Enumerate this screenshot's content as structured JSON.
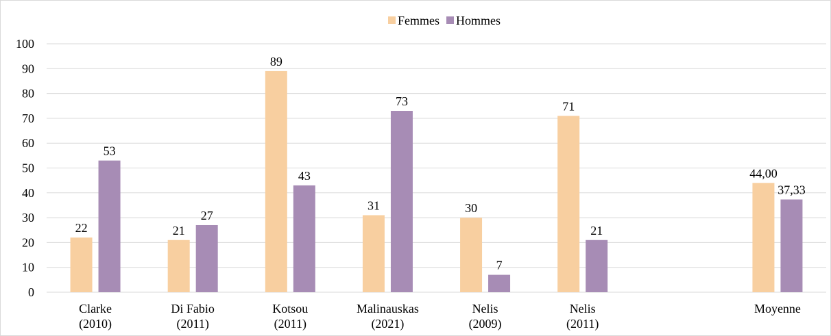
{
  "chart_data": {
    "type": "bar",
    "categories": [
      "Clarke\n(2010)",
      "Di Fabio\n(2011)",
      "Kotsou\n(2011)",
      "Malinauskas\n(2021)",
      "Nelis\n(2009)",
      "Nelis\n(2011)",
      null,
      "Moyenne"
    ],
    "series": [
      {
        "name": "Femmes",
        "color": "#f8cfa0",
        "values": [
          22,
          21,
          89,
          31,
          30,
          71,
          null,
          44.0
        ],
        "value_labels": [
          "22",
          "21",
          "89",
          "31",
          "30",
          "71",
          null,
          "44,00"
        ]
      },
      {
        "name": "Hommes",
        "color": "#a78cb5",
        "values": [
          53,
          27,
          43,
          73,
          7,
          21,
          null,
          37.33
        ],
        "value_labels": [
          "53",
          "27",
          "43",
          "73",
          "7",
          "21",
          null,
          "37,33"
        ]
      }
    ],
    "ylim": [
      0,
      100
    ],
    "yticks": [
      0,
      10,
      20,
      30,
      40,
      50,
      60,
      70,
      80,
      90,
      100
    ],
    "grid": true,
    "legend": "top"
  }
}
